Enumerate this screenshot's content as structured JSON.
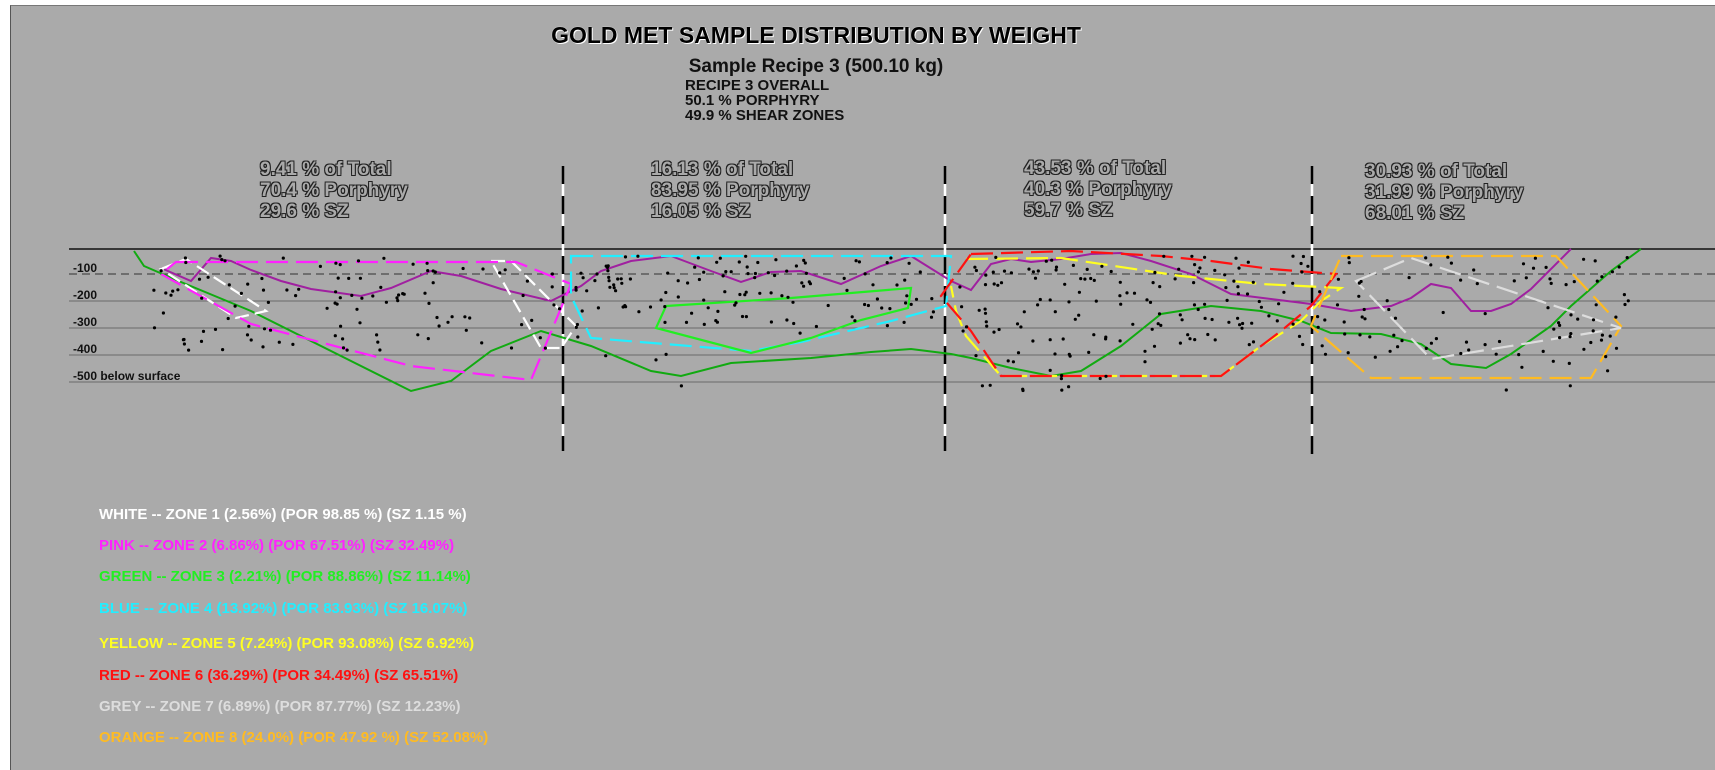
{
  "title": "GOLD MET SAMPLE DISTRIBUTION BY WEIGHT",
  "subtitle": "Sample Recipe 3 (500.10 kg)",
  "recipe_summary": [
    "RECIPE 3 OVERALL",
    "50.1 % PORPHYRY",
    "49.9 % SHEAR ZONES"
  ],
  "sections": [
    {
      "total": "9.41 % of Total",
      "porphyry": "70.4 % Porphyry",
      "sz": "29.6 % SZ"
    },
    {
      "total": "16.13 % of Total",
      "porphyry": "83.95 % Porphyry",
      "sz": "16.05 % SZ"
    },
    {
      "total": "43.53 % of Total",
      "porphyry": "40.3 % Porphyry",
      "sz": "59.7 % SZ"
    },
    {
      "total": "30.93 % of Total",
      "porphyry": "31.99 % Porphyry",
      "sz": "68.01 % SZ"
    }
  ],
  "depth_labels": [
    "-100",
    "-200",
    "-300",
    "-400",
    "-500 below surface"
  ],
  "legend": [
    {
      "text": "WHITE -- ZONE 1 (2.56%) (POR 98.85 %) (SZ 1.15 %)",
      "color": "#ffffff"
    },
    {
      "text": "PINK -- ZONE 2 (6.86%) (POR 67.51%) (SZ 32.49%)",
      "color": "#ff22ff"
    },
    {
      "text": "GREEN -- ZONE 3 (2.21%) (POR 88.86%) (SZ 11.14%)",
      "color": "#22ee22"
    },
    {
      "text": "BLUE -- ZONE 4 (13.92%) (POR 83.93%) (SZ 16.07%)",
      "color": "#22eeff"
    },
    {
      "text": "YELLOW -- ZONE 5 (7.24%) (POR 93.08%) (SZ 6.92%)",
      "color": "#ffff22"
    },
    {
      "text": "RED -- ZONE 6 (36.29%) (POR 34.49%) (SZ 65.51%)",
      "color": "#ff1111"
    },
    {
      "text": "GREY -- ZONE 7 (6.89%) (POR 87.77%) (SZ 12.23%)",
      "color": "#dddddd"
    },
    {
      "text": "ORANGE -- ZONE 8 (24.0%) (POR 47.92 %) (SZ 52.08%)",
      "color": "#ffbb22"
    }
  ],
  "colors": {
    "background": "#aaaaaa",
    "samples": "#000000",
    "boundary_dividers": "#000000 / #ffffff",
    "purple_line": "#a020a0",
    "green_line": "#11aa11"
  }
}
